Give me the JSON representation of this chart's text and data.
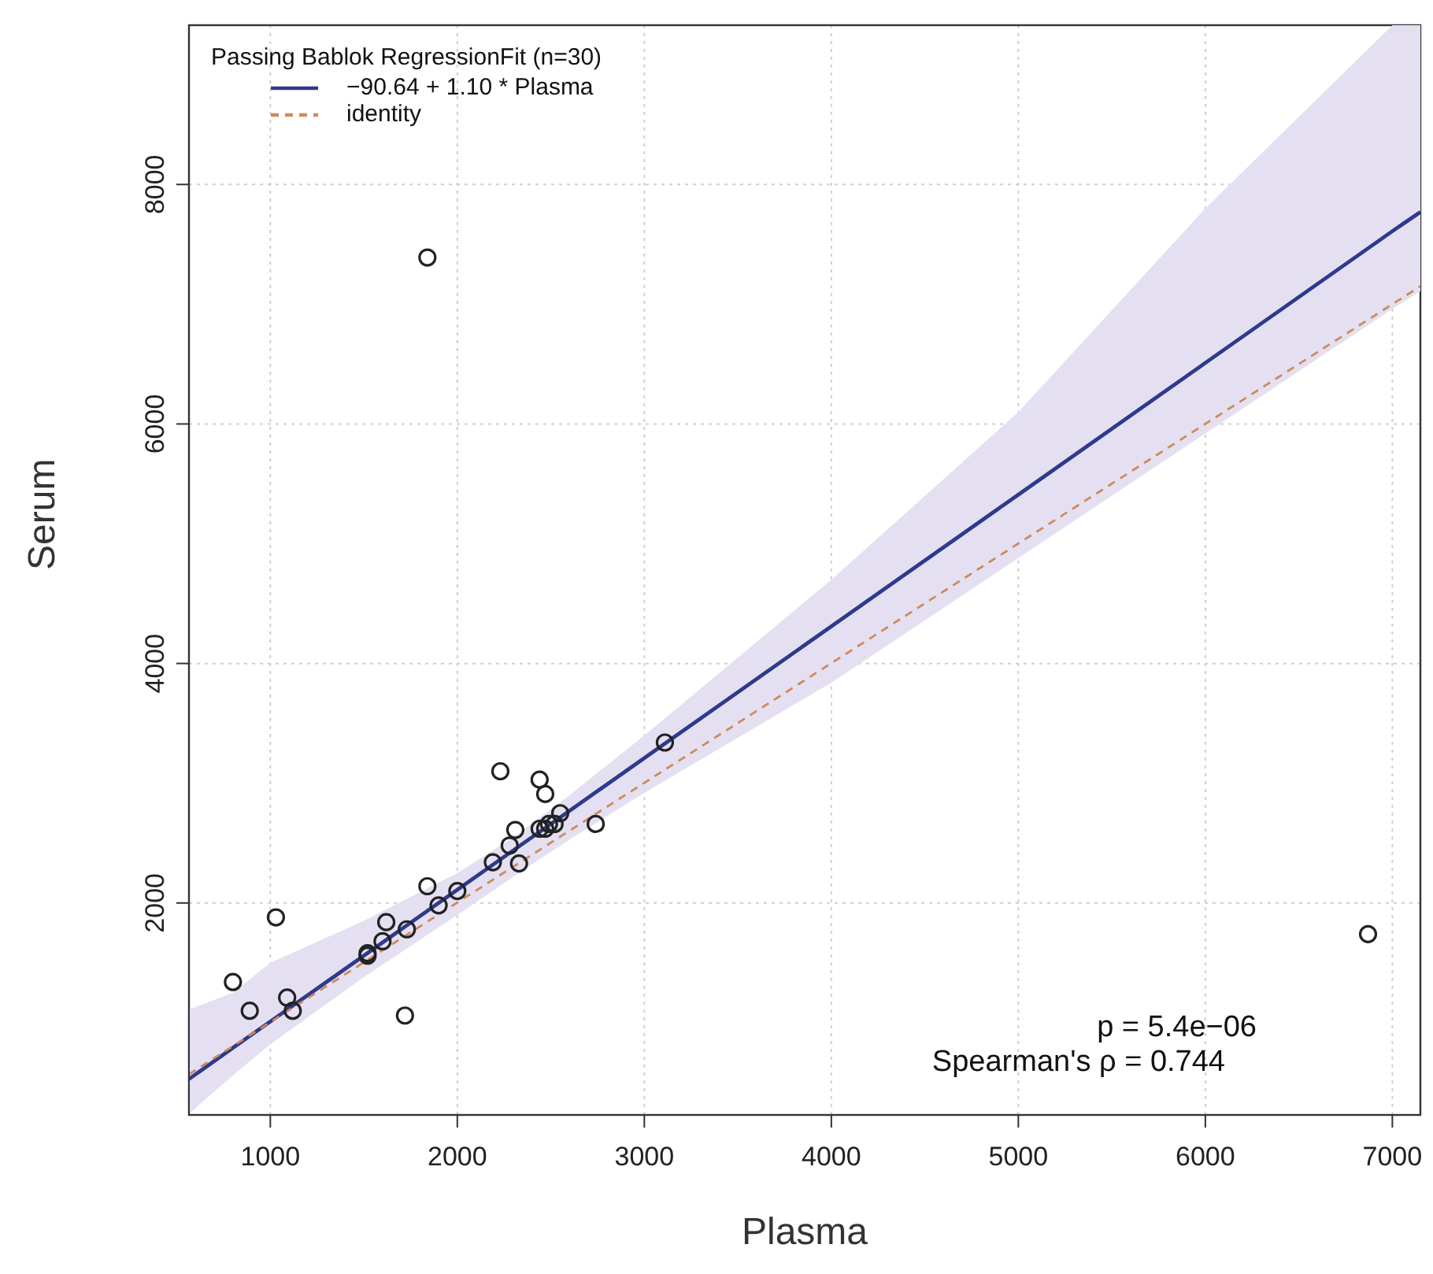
{
  "chart_data": {
    "type": "scatter",
    "xlabel": "Plasma",
    "ylabel": "Serum",
    "legend_title": "Passing Bablok RegressionFit (n=30)",
    "legend": "top left",
    "grid": true,
    "marker": "circle",
    "xlim": [
      565,
      7150
    ],
    "ylim": [
      230,
      9330
    ],
    "xticks": [
      1000,
      2000,
      3000,
      4000,
      5000,
      6000,
      7000
    ],
    "yticks": [
      2000,
      4000,
      6000,
      8000
    ],
    "annotations": [
      "p = 5.4e−06",
      "Spearman's ρ = 0.744"
    ],
    "series": [
      {
        "type": "line",
        "name": "−90.64 + 1.10 * Plasma",
        "color": "#2e3a8c",
        "line_style": "solid",
        "marker": "none",
        "x": [
          565,
          800,
          1000,
          1500,
          2000,
          2300,
          2600,
          3000,
          4000,
          5000,
          6000,
          7000,
          7150
        ],
        "values": [
          530,
          790,
          1010,
          1560,
          2110,
          2440,
          2770,
          3210,
          4310,
          5410,
          6510,
          7610,
          7770
        ],
        "lower": [
          240,
          560,
          820,
          1380,
          1900,
          2220,
          2530,
          2920,
          3840,
          4880,
          5920,
          6960,
          7110
        ],
        "upper": [
          1110,
          1250,
          1500,
          1850,
          2250,
          2550,
          2900,
          3400,
          4700,
          6100,
          7800,
          9330,
          9330
        ]
      },
      {
        "type": "line",
        "name": "identity",
        "color": "#d08a5a",
        "line_style": "dashed",
        "marker": "none",
        "x": [
          565,
          7150
        ],
        "values": [
          570,
          7150
        ]
      },
      {
        "color": "#222222",
        "x": [
          800,
          890,
          1030,
          1090,
          1120,
          1520,
          1520,
          1600,
          1620,
          1730,
          1720,
          1840,
          1900,
          2000,
          2190,
          2230,
          2280,
          2310,
          2330,
          2440,
          2470,
          2440,
          2470,
          2490,
          2520,
          2550,
          2740,
          3110,
          1840,
          6870
        ],
        "values": [
          1340,
          1100,
          1880,
          1210,
          1100,
          1580,
          1560,
          1680,
          1840,
          1780,
          1060,
          2140,
          1980,
          2100,
          2340,
          3100,
          2480,
          2610,
          2330,
          3030,
          2910,
          2620,
          2620,
          2660,
          2660,
          2750,
          2660,
          3340,
          7390,
          1740
        ]
      }
    ]
  }
}
